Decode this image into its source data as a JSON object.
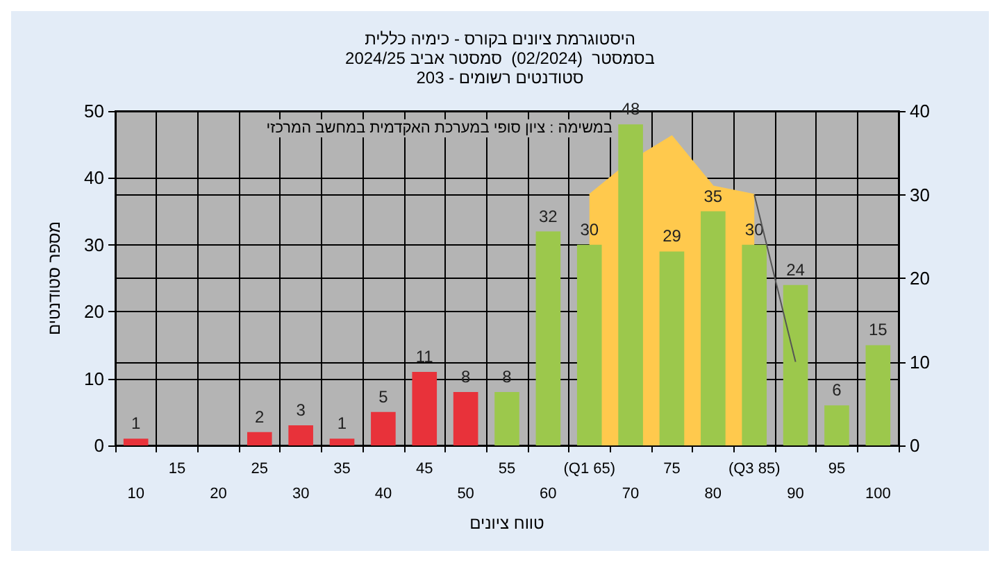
{
  "chart_data": {
    "type": "bar",
    "title": "היסטוגרמת ציונים בקורס - כימיה כללית\nבסמסטר  (02/2024)  סמסטר אביב 2024/25\nסטודנטים רשומים - 203",
    "xlabel": "טווח ציונים",
    "ylabel": "מספר סטודנטים",
    "annotations": [
      "במשימה : ציון סופי במערכת האקדמית במחשב המרכזי"
    ],
    "categories": [
      "10",
      "15",
      "20",
      "25",
      "30",
      "35",
      "40",
      "45",
      "50",
      "55",
      "60",
      "(Q1 65)",
      "70",
      "75",
      "80",
      "(Q3 85)",
      "90",
      "95",
      "100"
    ],
    "series": [
      {
        "value_labels": [
          "1",
          null,
          null,
          "2",
          "3",
          "1",
          "5",
          "11",
          "8",
          "8",
          "32",
          "30",
          "48",
          "29",
          "35",
          "30",
          "24",
          "6",
          "15"
        ],
        "colors": [
          "#e8323a",
          "#e8323a",
          "#e8323a",
          "#e8323a",
          "#e8323a",
          "#e8323a",
          "#e8323a",
          "#e8323a",
          "#e8323a",
          "#9cc84c",
          "#9cc84c",
          "#9cc84c",
          "#9cc84c",
          "#9cc84c",
          "#9cc84c",
          "#9cc84c",
          "#9cc84c",
          "#9cc84c",
          "#9cc84c"
        ],
        "values": [
          1,
          null,
          null,
          2,
          3,
          1,
          5,
          11,
          8,
          8,
          32,
          30,
          48,
          29,
          35,
          30,
          24,
          6,
          15
        ]
      },
      {
        "type": "area",
        "axis": "y2",
        "color": "#ffc94d",
        "values": [
          null,
          null,
          null,
          null,
          null,
          null,
          null,
          null,
          null,
          null,
          null,
          30,
          34,
          37,
          31,
          30,
          null,
          null,
          null
        ]
      },
      {
        "type": "line",
        "axis": "y2",
        "color": "#555555",
        "values": [
          null,
          null,
          null,
          null,
          null,
          null,
          null,
          null,
          null,
          null,
          null,
          null,
          null,
          null,
          null,
          30,
          10,
          null,
          null
        ]
      }
    ],
    "ylim": [
      0,
      50
    ],
    "yticks": [
      0,
      10,
      20,
      30,
      40,
      50
    ],
    "y2lim": [
      0,
      40
    ],
    "y2ticks": [
      0,
      10,
      20,
      30,
      40
    ],
    "grid": true,
    "marker": "none"
  }
}
